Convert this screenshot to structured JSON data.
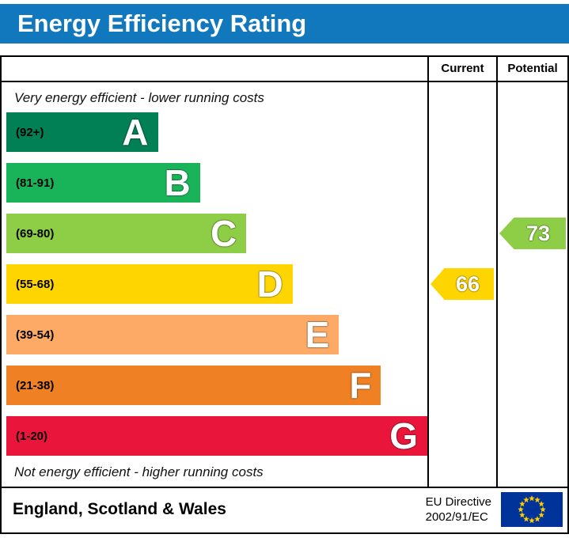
{
  "header": {
    "title": "Energy Efficiency Rating",
    "bg_color": "#1278be"
  },
  "chart_data": {
    "type": "bar",
    "title": "Energy Efficiency Rating",
    "top_note": "Very energy efficient - lower running costs",
    "bottom_note": "Not energy efficient - higher running costs",
    "categories": [
      "A",
      "B",
      "C",
      "D",
      "E",
      "F",
      "G"
    ],
    "ranges": [
      "(92+)",
      "(81-91)",
      "(69-80)",
      "(55-68)",
      "(39-54)",
      "(21-38)",
      "(1-20)"
    ],
    "colors": [
      "#008054",
      "#19b459",
      "#8dce46",
      "#ffd500",
      "#fcaa65",
      "#ef8023",
      "#e9153b"
    ],
    "bar_width_pct": [
      36,
      46,
      57,
      68,
      79,
      89,
      100
    ],
    "score_min": 1,
    "score_max": 100,
    "current": {
      "label": "Current",
      "value": 66,
      "band": "D",
      "band_index": 3,
      "color": "#ffd500"
    },
    "potential": {
      "label": "Potential",
      "value": 73,
      "band": "C",
      "band_index": 2,
      "color": "#8dce46"
    }
  },
  "footer": {
    "region": "England, Scotland & Wales",
    "directive": [
      "EU Directive",
      "2002/91/EC"
    ]
  }
}
